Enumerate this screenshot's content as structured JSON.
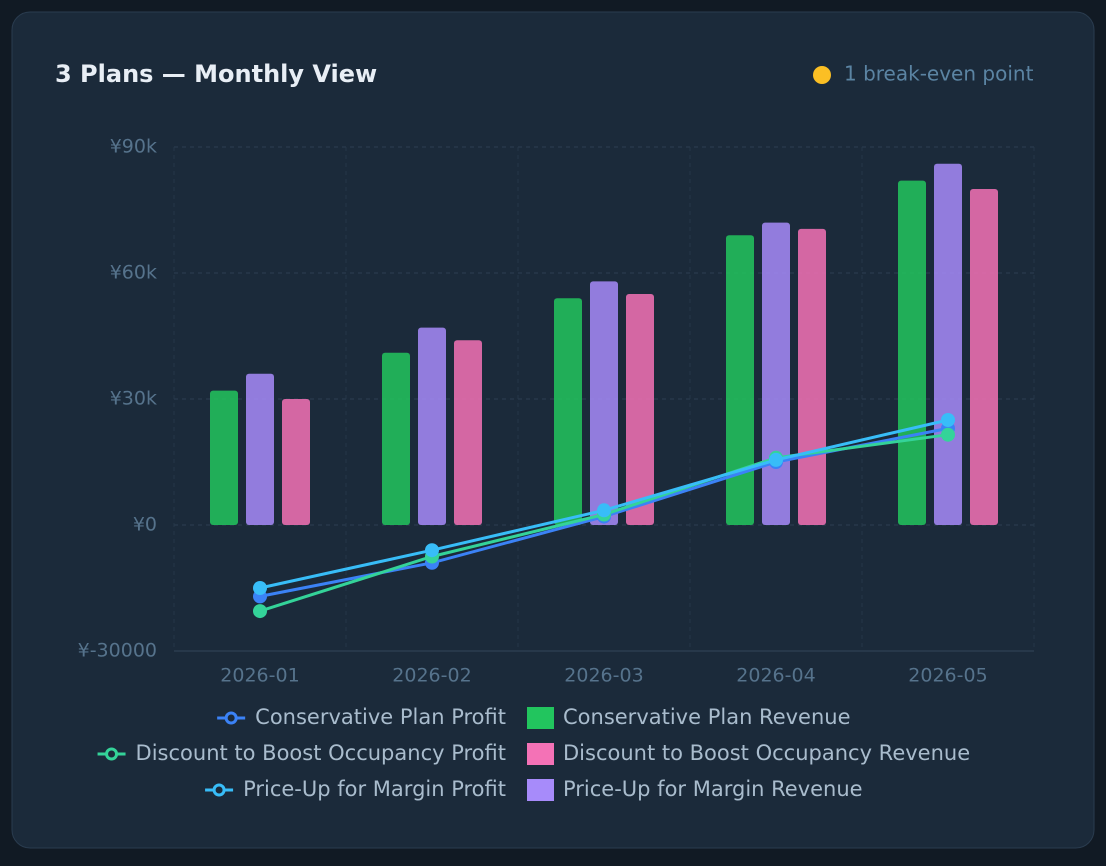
{
  "chart_data": {
    "type": "bar",
    "title": "3 Plans — Monthly View",
    "badge": "1 break-even point",
    "categories": [
      "2026-01",
      "2026-02",
      "2026-03",
      "2026-04",
      "2026-05"
    ],
    "ylim": [
      -30000,
      90000
    ],
    "yticks": [
      {
        "value": -30000,
        "label": "¥-30000"
      },
      {
        "value": 0,
        "label": "¥0"
      },
      {
        "value": 30000,
        "label": "¥30k"
      },
      {
        "value": 60000,
        "label": "¥60k"
      },
      {
        "value": 90000,
        "label": "¥90k"
      }
    ],
    "grid": true,
    "series": [
      {
        "name": "Conservative Plan Revenue",
        "type": "bar",
        "color": "#22c55e",
        "values": [
          32000,
          41000,
          54000,
          69000,
          82000
        ]
      },
      {
        "name": "Price-Up for Margin Revenue",
        "type": "bar",
        "color": "#a78bfa",
        "values": [
          36000,
          47000,
          58000,
          72000,
          86000
        ]
      },
      {
        "name": "Discount to Boost Occupancy Revenue",
        "type": "bar",
        "color": "#f472b6",
        "values": [
          30000,
          44000,
          55000,
          70500,
          80000
        ]
      },
      {
        "name": "Conservative Plan Profit",
        "type": "line",
        "color": "#3b82f6",
        "values": [
          -17000,
          -9000,
          2000,
          15000,
          23000
        ]
      },
      {
        "name": "Discount to Boost Occupancy Profit",
        "type": "line",
        "color": "#34d399",
        "values": [
          -20500,
          -7500,
          2500,
          16000,
          21500
        ]
      },
      {
        "name": "Price-Up for Margin Profit",
        "type": "line",
        "color": "#38bdf8",
        "values": [
          -15000,
          -6000,
          3500,
          15500,
          25000
        ]
      }
    ]
  }
}
